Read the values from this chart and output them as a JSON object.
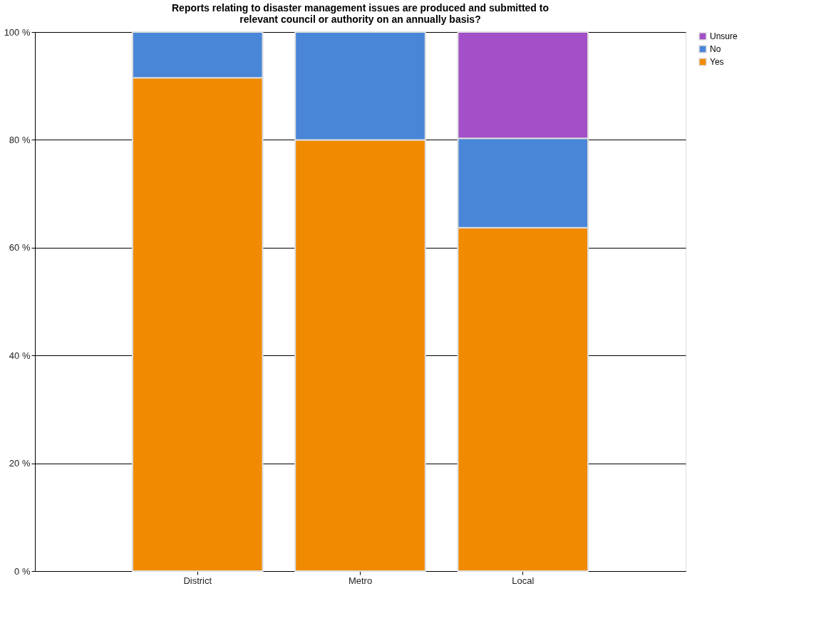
{
  "chart_data": {
    "type": "bar",
    "title": "Reports relating to disaster management issues are produced and submitted to relevant council or authority on an annually basis?",
    "categories": [
      "District",
      "Metro",
      "Local"
    ],
    "series": [
      {
        "name": "Yes",
        "color": "#f08a00",
        "values": [
          91.5,
          80,
          63.7
        ]
      },
      {
        "name": "No",
        "color": "#4a86d8",
        "values": [
          8.5,
          20,
          16.6
        ]
      },
      {
        "name": "Unsure",
        "color": "#a24fc8",
        "values": [
          null,
          null,
          19.7
        ]
      }
    ],
    "stacked": true,
    "ylim": [
      0,
      100
    ],
    "yticks": [
      {
        "value": 0,
        "label": "0 %"
      },
      {
        "value": 20,
        "label": "20 %"
      },
      {
        "value": 40,
        "label": "40 %"
      },
      {
        "value": 60,
        "label": "60 %"
      },
      {
        "value": 80,
        "label": "80 %"
      },
      {
        "value": 100,
        "label": "100 %"
      }
    ],
    "grid": "y",
    "legend": "right"
  }
}
